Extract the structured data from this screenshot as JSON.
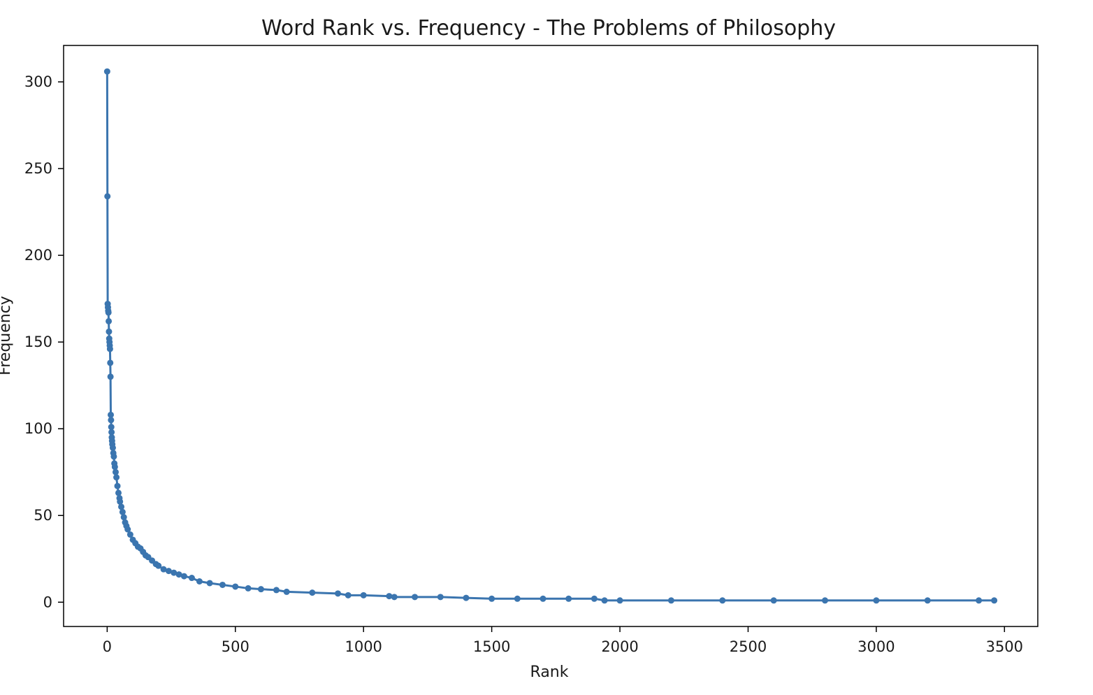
{
  "chart_data": {
    "type": "line",
    "title": "Word Rank vs. Frequency - The Problems of Philosophy",
    "xlabel": "Rank",
    "ylabel": "Frequency",
    "xlim": [
      -170,
      3630
    ],
    "ylim": [
      -14,
      321
    ],
    "x_ticks": [
      0,
      500,
      1000,
      1500,
      2000,
      2500,
      3000,
      3500
    ],
    "y_ticks": [
      0,
      50,
      100,
      150,
      200,
      250,
      300
    ],
    "grid": false,
    "legend": "none",
    "marker": "circle",
    "color": "#3b75af",
    "series": [
      {
        "x": [
          0,
          1,
          2,
          3,
          4,
          5,
          6,
          7,
          8,
          9,
          10,
          11,
          12,
          13,
          14,
          15,
          16,
          17,
          18,
          19,
          20,
          22,
          24,
          26,
          28,
          30,
          33,
          36,
          40,
          44,
          48,
          50,
          55,
          60,
          65,
          70,
          75,
          80,
          90,
          100,
          110,
          120,
          130,
          140,
          150,
          160,
          175,
          190,
          200,
          220,
          240,
          260,
          280,
          300,
          330,
          360,
          400,
          450,
          500,
          550,
          600,
          660,
          700,
          800,
          900,
          940,
          1000,
          1100,
          1120,
          1200,
          1300,
          1400,
          1500,
          1600,
          1700,
          1800,
          1900,
          1940,
          2000,
          2200,
          2400,
          2600,
          2800,
          3000,
          3200,
          3400,
          3460
        ],
        "y": [
          306,
          234,
          172,
          170,
          168,
          167,
          162,
          156,
          152,
          150,
          148,
          146,
          138,
          130,
          108,
          105,
          101,
          98,
          95,
          93,
          91,
          89,
          86,
          84,
          80,
          78,
          75,
          72,
          67,
          63,
          60,
          58,
          55,
          52,
          49,
          46,
          44,
          42,
          39,
          36,
          34,
          32,
          31,
          29,
          27,
          26,
          24,
          22,
          21,
          19,
          18,
          17,
          16,
          15,
          14,
          12,
          11,
          10,
          9,
          8,
          7.5,
          7,
          6,
          5.5,
          5,
          4,
          4,
          3.5,
          3,
          3,
          3,
          2.5,
          2,
          2,
          2,
          2,
          2,
          1,
          1,
          1,
          1,
          1,
          1,
          1,
          1,
          1,
          1
        ]
      }
    ]
  }
}
